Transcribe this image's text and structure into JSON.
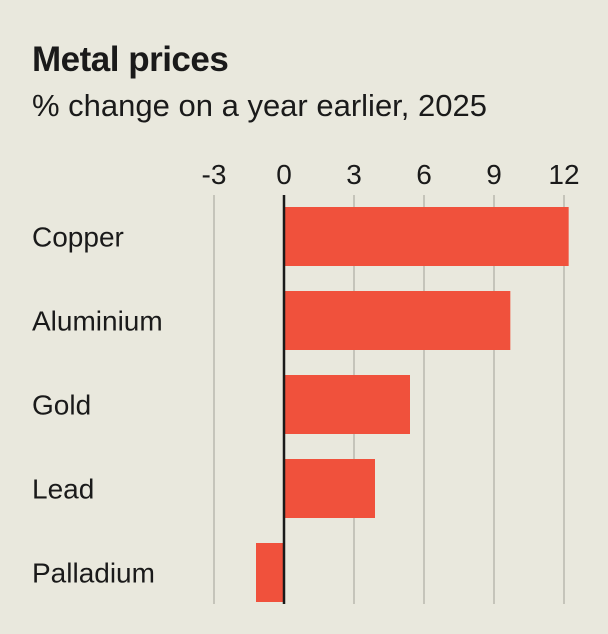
{
  "colors": {
    "background": "#e9e8dd",
    "bar": "#f0513c",
    "grid": "#b9b8ae",
    "zero_line": "#1a1a1a",
    "text": "#1a1a1a"
  },
  "chart_data": {
    "type": "bar",
    "orientation": "horizontal",
    "title": "Metal prices",
    "subtitle": "% change on a year earlier, 2025",
    "categories": [
      "Copper",
      "Aluminium",
      "Gold",
      "Lead",
      "Palladium"
    ],
    "values": [
      12.2,
      9.7,
      5.4,
      3.9,
      -1.2
    ],
    "xlim": [
      -3,
      12
    ],
    "xticks": [
      "-3",
      "0",
      "3",
      "6",
      "9",
      "12"
    ],
    "xtick_values": [
      -3,
      0,
      3,
      6,
      9,
      12
    ],
    "grid": true,
    "legend": "none"
  }
}
